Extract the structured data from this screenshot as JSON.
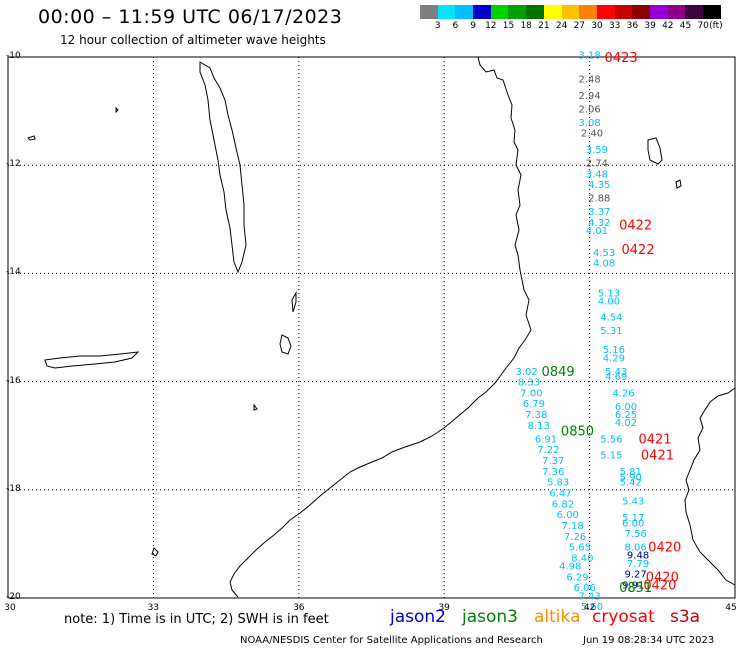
{
  "header": {
    "title": "00:00 – 11:59 UTC 06/17/2023",
    "subtitle": "12 hour collection of altimeter wave heights"
  },
  "colorbar": {
    "colors": [
      "#7f7f7f",
      "#00e5ff",
      "#00bfff",
      "#0000cd",
      "#00d200",
      "#00a000",
      "#007000",
      "#ffff00",
      "#ffc000",
      "#ff8000",
      "#ff0000",
      "#c80000",
      "#8b0000",
      "#9400d3",
      "#8b008b",
      "#400040",
      "#000000"
    ],
    "labels": [
      "3",
      "6",
      "9",
      "12",
      "15",
      "18",
      "21",
      "24",
      "27",
      "30",
      "33",
      "36",
      "39",
      "42",
      "45",
      "70",
      "(ft)"
    ]
  },
  "axes": {
    "lat_labels": [
      "-10",
      "-12",
      "-14",
      "-16",
      "-18",
      "-20"
    ],
    "lon_labels": [
      "30",
      "33",
      "36",
      "39",
      "42",
      "45"
    ]
  },
  "colors": {
    "cryosat": "#ff0000",
    "jason3": "#008000",
    "jason2": "#0000cd",
    "altika": "#ff8c00",
    "cyan": "#00bfff",
    "grey": "#555555",
    "navy": "#000080"
  },
  "track_labels": [
    {
      "text": "0423",
      "color": "#ff0000",
      "lat": -10.0,
      "lon": 42.65
    },
    {
      "text": "0422",
      "color": "#ff0000",
      "lat": -13.1,
      "lon": 42.95
    },
    {
      "text": "0422",
      "color": "#ff0000",
      "lat": -13.55,
      "lon": 43.0
    },
    {
      "text": "0849",
      "color": "#008000",
      "lat": -15.8,
      "lon": 41.35
    },
    {
      "text": "0850",
      "color": "#008000",
      "lat": -16.9,
      "lon": 41.75
    },
    {
      "text": "0421",
      "color": "#ff0000",
      "lat": -17.05,
      "lon": 43.35
    },
    {
      "text": "0421",
      "color": "#ff0000",
      "lat": -17.35,
      "lon": 43.4
    },
    {
      "text": "0420",
      "color": "#ff0000",
      "lat": -19.05,
      "lon": 43.55
    },
    {
      "text": "0420",
      "color": "#ff0000",
      "lat": -19.6,
      "lon": 43.5
    },
    {
      "text": "0420",
      "color": "#ff0000",
      "lat": -19.75,
      "lon": 43.45
    },
    {
      "text": "0851",
      "color": "#008000",
      "lat": -19.8,
      "lon": 42.95
    }
  ],
  "swh_values": [
    {
      "v": "3.18",
      "c": "#00bfff",
      "lat": -9.95,
      "lon": 42.0
    },
    {
      "v": "2.48",
      "c": "#555555",
      "lat": -10.4,
      "lon": 42.0
    },
    {
      "v": "2.94",
      "c": "#555555",
      "lat": -10.7,
      "lon": 42.0
    },
    {
      "v": "2.06",
      "c": "#555555",
      "lat": -10.95,
      "lon": 42.0
    },
    {
      "v": "3.08",
      "c": "#00bfff",
      "lat": -11.2,
      "lon": 42.0
    },
    {
      "v": "2.40",
      "c": "#555555",
      "lat": -11.4,
      "lon": 42.05
    },
    {
      "v": "3.59",
      "c": "#00bfff",
      "lat": -11.7,
      "lon": 42.15
    },
    {
      "v": "2.74",
      "c": "#555555",
      "lat": -11.95,
      "lon": 42.15
    },
    {
      "v": "3.48",
      "c": "#00bfff",
      "lat": -12.15,
      "lon": 42.15
    },
    {
      "v": "4.35",
      "c": "#00bfff",
      "lat": -12.35,
      "lon": 42.2
    },
    {
      "v": "2.88",
      "c": "#555555",
      "lat": -12.6,
      "lon": 42.2
    },
    {
      "v": "3.37",
      "c": "#00bfff",
      "lat": -12.85,
      "lon": 42.2
    },
    {
      "v": "4.32",
      "c": "#00bfff",
      "lat": -13.05,
      "lon": 42.2
    },
    {
      "v": "4.01",
      "c": "#00bfff",
      "lat": -13.2,
      "lon": 42.15
    },
    {
      "v": "4.53",
      "c": "#00bfff",
      "lat": -13.6,
      "lon": 42.3
    },
    {
      "v": "4.08",
      "c": "#00bfff",
      "lat": -13.8,
      "lon": 42.3
    },
    {
      "v": "5.13",
      "c": "#00bfff",
      "lat": -14.35,
      "lon": 42.4
    },
    {
      "v": "4.00",
      "c": "#00bfff",
      "lat": -14.5,
      "lon": 42.4
    },
    {
      "v": "4.54",
      "c": "#00bfff",
      "lat": -14.8,
      "lon": 42.45
    },
    {
      "v": "5.31",
      "c": "#00bfff",
      "lat": -15.05,
      "lon": 42.45
    },
    {
      "v": "5.16",
      "c": "#00bfff",
      "lat": -15.4,
      "lon": 42.5
    },
    {
      "v": "4.29",
      "c": "#00bfff",
      "lat": -15.55,
      "lon": 42.5
    },
    {
      "v": "5.43",
      "c": "#00bfff",
      "lat": -15.8,
      "lon": 42.55
    },
    {
      "v": "4.69",
      "c": "#00bfff",
      "lat": -15.9,
      "lon": 42.55
    },
    {
      "v": "3.02",
      "c": "#00bfff",
      "lat": -15.8,
      "lon": 40.7
    },
    {
      "v": "8.33",
      "c": "#00bfff",
      "lat": -16.0,
      "lon": 40.75
    },
    {
      "v": "7.00",
      "c": "#00bfff",
      "lat": -16.2,
      "lon": 40.8
    },
    {
      "v": "6.79",
      "c": "#00bfff",
      "lat": -16.4,
      "lon": 40.85
    },
    {
      "v": "7.38",
      "c": "#00bfff",
      "lat": -16.6,
      "lon": 40.9
    },
    {
      "v": "8.13",
      "c": "#00bfff",
      "lat": -16.8,
      "lon": 40.95
    },
    {
      "v": "6.91",
      "c": "#00bfff",
      "lat": -17.05,
      "lon": 41.1
    },
    {
      "v": "7.22",
      "c": "#00bfff",
      "lat": -17.25,
      "lon": 41.15
    },
    {
      "v": "7.37",
      "c": "#00bfff",
      "lat": -17.45,
      "lon": 41.25
    },
    {
      "v": "7.36",
      "c": "#00bfff",
      "lat": -17.65,
      "lon": 41.25
    },
    {
      "v": "5.83",
      "c": "#00bfff",
      "lat": -17.85,
      "lon": 41.35
    },
    {
      "v": "6.47",
      "c": "#00bfff",
      "lat": -18.05,
      "lon": 41.4
    },
    {
      "v": "6.82",
      "c": "#00bfff",
      "lat": -18.25,
      "lon": 41.45
    },
    {
      "v": "6.00",
      "c": "#00bfff",
      "lat": -18.45,
      "lon": 41.55
    },
    {
      "v": "7.18",
      "c": "#00bfff",
      "lat": -18.65,
      "lon": 41.65
    },
    {
      "v": "7.26",
      "c": "#00bfff",
      "lat": -18.85,
      "lon": 41.7
    },
    {
      "v": "5.65",
      "c": "#00bfff",
      "lat": -19.05,
      "lon": 41.8
    },
    {
      "v": "8.40",
      "c": "#00bfff",
      "lat": -19.25,
      "lon": 41.85
    },
    {
      "v": "4.98",
      "c": "#00bfff",
      "lat": -19.4,
      "lon": 41.6
    },
    {
      "v": "6.29",
      "c": "#00bfff",
      "lat": -19.6,
      "lon": 41.75
    },
    {
      "v": "6.06",
      "c": "#00bfff",
      "lat": -19.8,
      "lon": 41.9
    },
    {
      "v": "7.43",
      "c": "#00bfff",
      "lat": -19.95,
      "lon": 42.0
    },
    {
      "v": "5.60",
      "c": "#00bfff",
      "lat": -20.15,
      "lon": 42.05
    },
    {
      "v": "4.26",
      "c": "#00bfff",
      "lat": -16.2,
      "lon": 42.7
    },
    {
      "v": "6.00",
      "c": "#00bfff",
      "lat": -16.45,
      "lon": 42.75
    },
    {
      "v": "6.25",
      "c": "#00bfff",
      "lat": -16.6,
      "lon": 42.75
    },
    {
      "v": "4.02",
      "c": "#00bfff",
      "lat": -16.75,
      "lon": 42.75
    },
    {
      "v": "5.56",
      "c": "#00bfff",
      "lat": -17.05,
      "lon": 42.45
    },
    {
      "v": "5.15",
      "c": "#00bfff",
      "lat": -17.35,
      "lon": 42.45
    },
    {
      "v": "5.81",
      "c": "#00bfff",
      "lat": -17.65,
      "lon": 42.85
    },
    {
      "v": "5.90",
      "c": "#00bfff",
      "lat": -17.75,
      "lon": 42.85
    },
    {
      "v": "5.42",
      "c": "#00bfff",
      "lat": -17.85,
      "lon": 42.85
    },
    {
      "v": "5.43",
      "c": "#00bfff",
      "lat": -18.2,
      "lon": 42.9
    },
    {
      "v": "5.17",
      "c": "#00bfff",
      "lat": -18.5,
      "lon": 42.9
    },
    {
      "v": "6.00",
      "c": "#00bfff",
      "lat": -18.6,
      "lon": 42.9
    },
    {
      "v": "7.56",
      "c": "#00bfff",
      "lat": -18.8,
      "lon": 42.95
    },
    {
      "v": "8.06",
      "c": "#00bfff",
      "lat": -19.05,
      "lon": 42.95
    },
    {
      "v": "9.48",
      "c": "#000080",
      "lat": -19.2,
      "lon": 43.0
    },
    {
      "v": "7.79",
      "c": "#00bfff",
      "lat": -19.35,
      "lon": 43.0
    },
    {
      "v": "9.27",
      "c": "#000080",
      "lat": -19.55,
      "lon": 42.95
    },
    {
      "v": "9.91",
      "c": "#000080",
      "lat": -19.75,
      "lon": 42.9
    }
  ],
  "footer": {
    "note": "note:  1) Time is in UTC;  2) SWH is in feet",
    "legend": [
      {
        "name": "jason2",
        "color": "#0000cd"
      },
      {
        "name": "jason3",
        "color": "#008000"
      },
      {
        "name": "altika",
        "color": "#ff8c00"
      },
      {
        "name": "cryosat",
        "color": "#ff0000"
      },
      {
        "name": "s3a",
        "color": "#c80000"
      }
    ],
    "credit_left": "NOAA/NESDIS Center for Satellite Applications and Research",
    "credit_right": "Jun 19 08:28:34 UTC 2023"
  }
}
